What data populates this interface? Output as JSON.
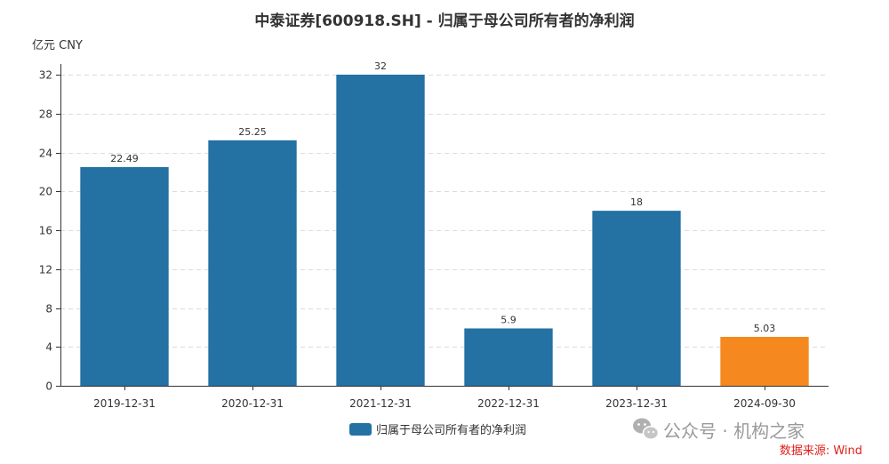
{
  "chart_data": {
    "type": "bar",
    "title": "中泰证券[600918.SH] - 归属于母公司所有者的净利润",
    "unit": "亿元  CNY",
    "categories": [
      "2019-12-31",
      "2020-12-31",
      "2021-12-31",
      "2022-12-31",
      "2023-12-31",
      "2024-09-30"
    ],
    "values": [
      22.49,
      25.25,
      32,
      5.9,
      18,
      5.03
    ],
    "value_labels": [
      "22.49",
      "25.25",
      "32",
      "5.9",
      "18",
      "5.03"
    ],
    "bar_colors": [
      "#2471a3",
      "#2471a3",
      "#2471a3",
      "#2471a3",
      "#2471a3",
      "#f5891f"
    ],
    "yticks": [
      "0",
      "4",
      "8",
      "12",
      "16",
      "20",
      "24",
      "28",
      "32"
    ],
    "ylim": [
      0,
      32
    ],
    "grid": true,
    "legend": {
      "label": "归属于母公司所有者的净利润",
      "color": "#2471a3",
      "position": "bottom-center"
    }
  },
  "watermark": {
    "text": "公众号 · 机构之家",
    "icon": "wechat-icon"
  },
  "source": "数据来源: Wind"
}
